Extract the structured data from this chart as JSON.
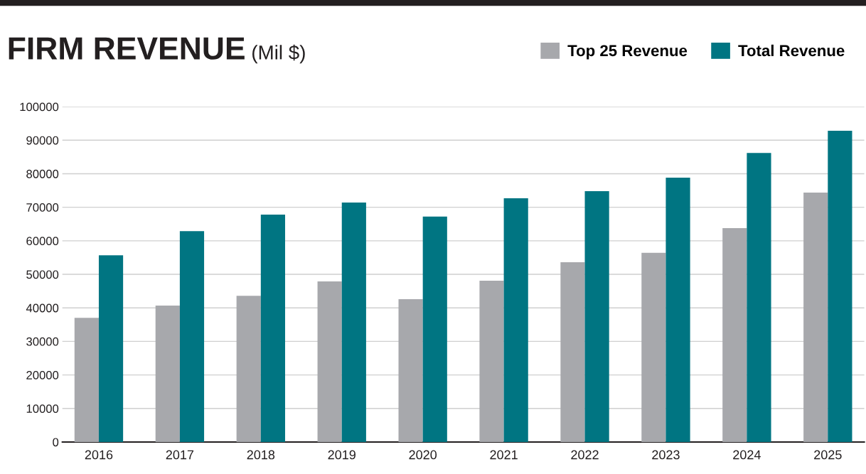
{
  "chart_data": {
    "type": "bar",
    "title": "FIRM REVENUE",
    "subtitle": "(Mil $)",
    "categories": [
      "2016",
      "2017",
      "2018",
      "2019",
      "2020",
      "2021",
      "2022",
      "2023",
      "2024",
      "2025"
    ],
    "series": [
      {
        "name": "Top 25 Revenue",
        "color": "#a7a8ac",
        "values": [
          37000,
          40700,
          43600,
          47900,
          42600,
          48100,
          53600,
          56400,
          63800,
          74400
        ]
      },
      {
        "name": "Total Revenue",
        "color": "#007582",
        "values": [
          55700,
          62900,
          67800,
          71400,
          67200,
          72700,
          74800,
          78800,
          86200,
          92800
        ]
      }
    ],
    "ylim": [
      0,
      100000
    ],
    "yticks": [
      0,
      10000,
      20000,
      30000,
      40000,
      50000,
      60000,
      70000,
      80000,
      90000,
      100000
    ],
    "grid": "y",
    "legend": "top right"
  }
}
